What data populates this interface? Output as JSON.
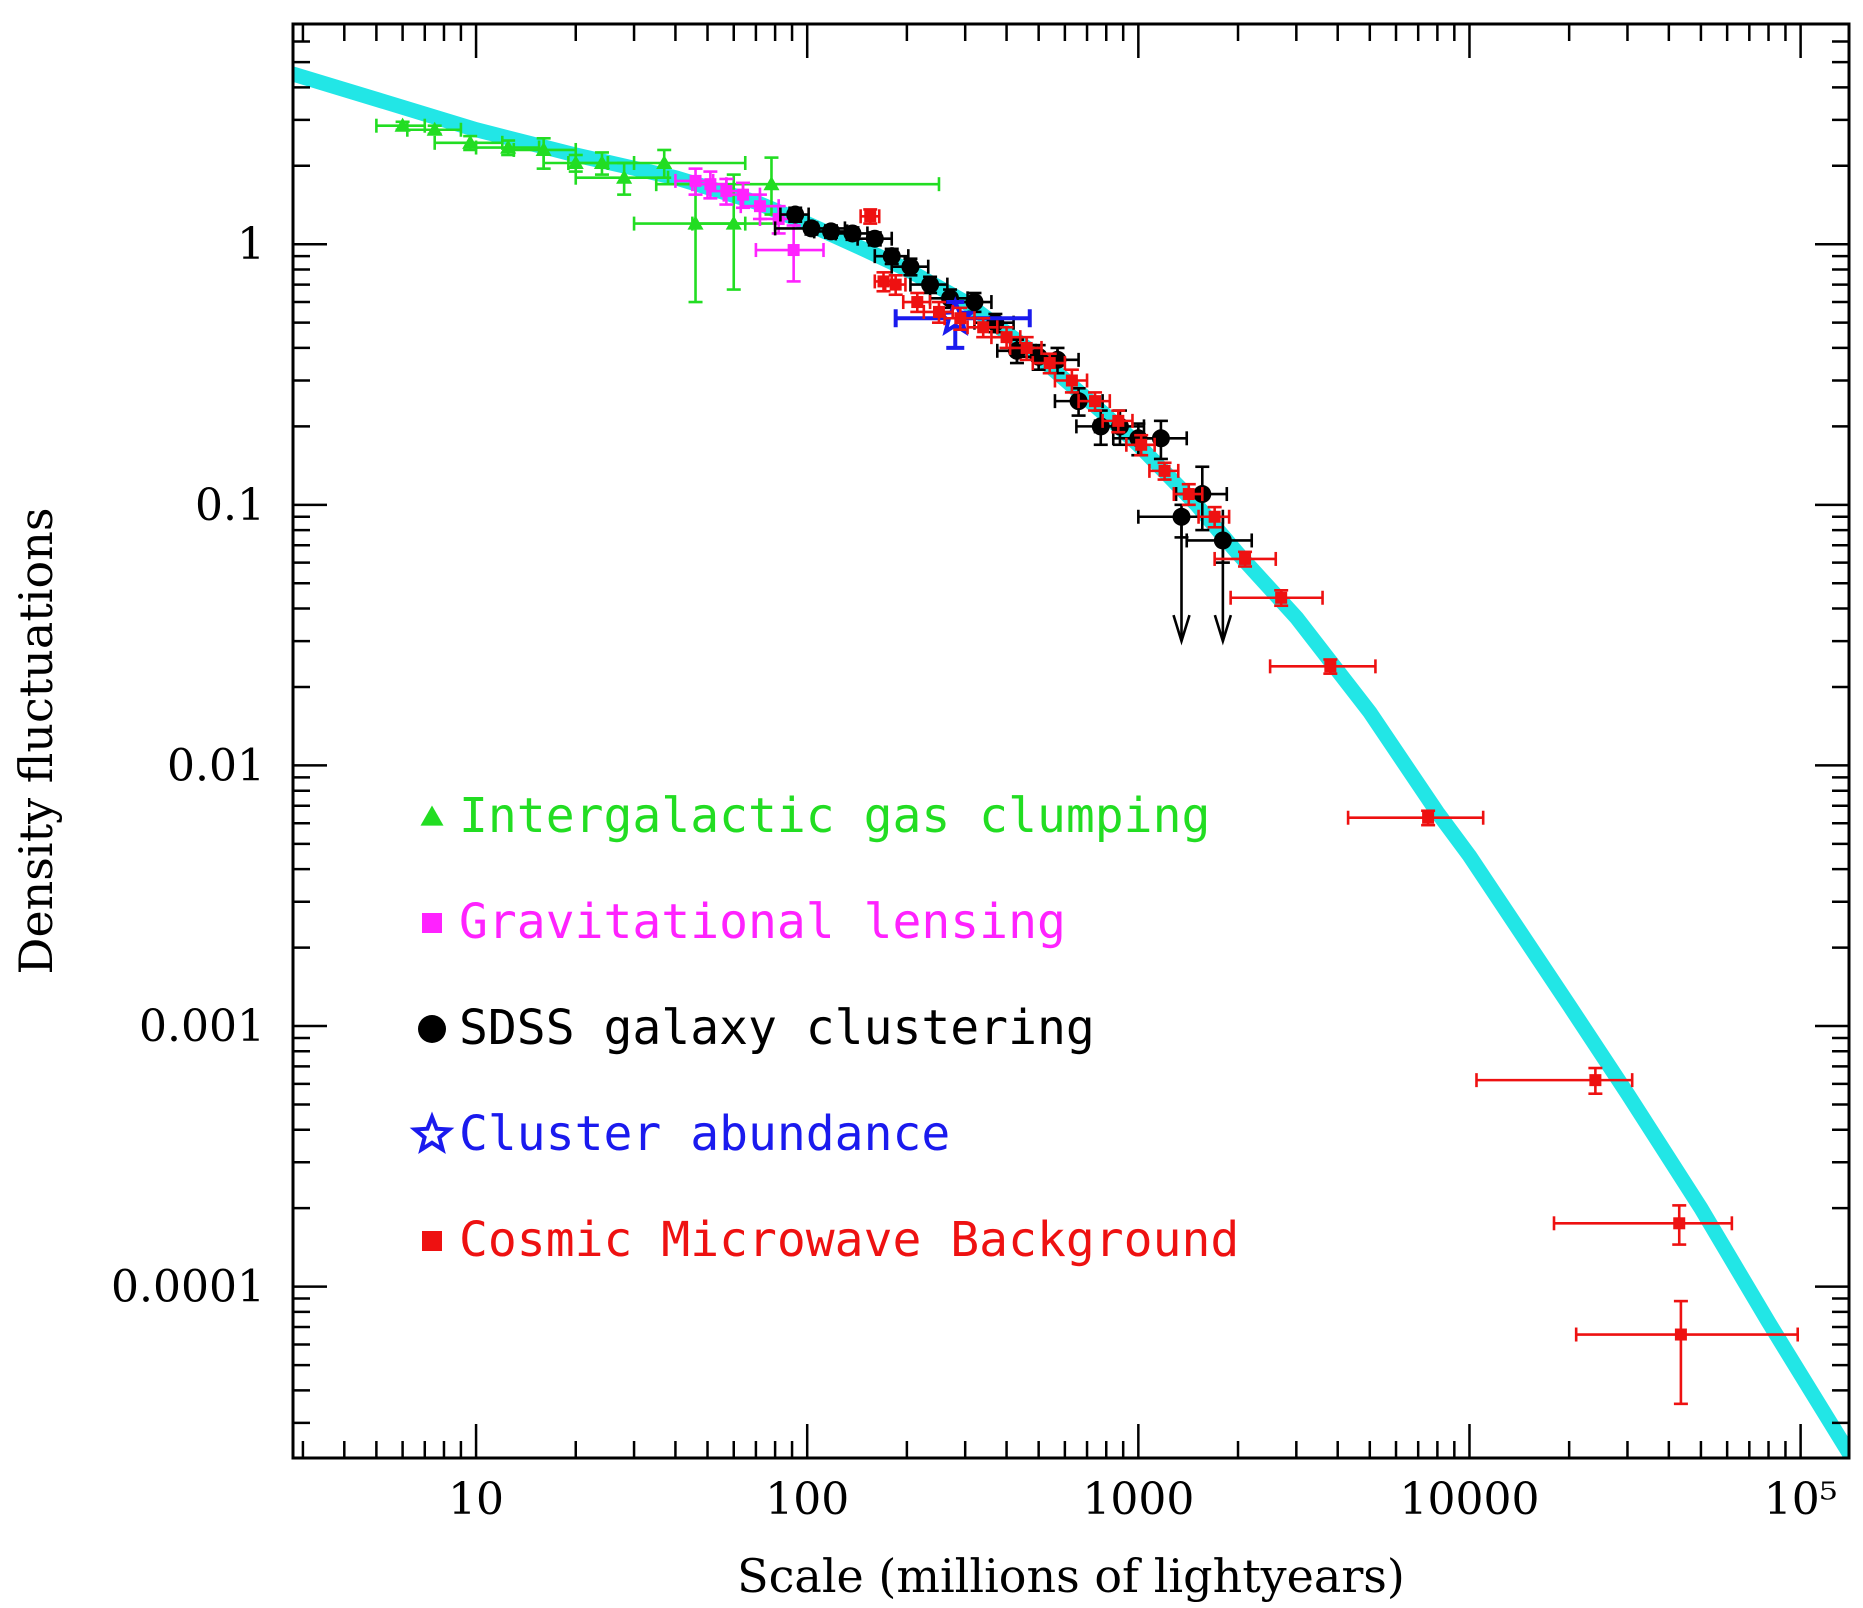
{
  "chart_data": {
    "type": "scatter",
    "title": "",
    "xlabel": "Scale (millions of lightyears)",
    "ylabel": "Density fluctuations",
    "x_scale": "log",
    "y_scale": "log",
    "xlim": [
      2.8,
      140000
    ],
    "ylim": [
      2.2e-05,
      7
    ],
    "x_ticks": [
      {
        "value": 10,
        "label": "10"
      },
      {
        "value": 100,
        "label": "100"
      },
      {
        "value": 1000,
        "label": "1000"
      },
      {
        "value": 10000,
        "label": "10000"
      },
      {
        "value": 100000,
        "label": "10⁵"
      }
    ],
    "y_ticks": [
      {
        "value": 1,
        "label": "1"
      },
      {
        "value": 0.1,
        "label": "0.1"
      },
      {
        "value": 0.01,
        "label": "0.01"
      },
      {
        "value": 0.001,
        "label": "0.001"
      },
      {
        "value": 0.0001,
        "label": "0.0001"
      }
    ],
    "grid": false,
    "legend_position": "bottom-left",
    "model_curve": {
      "color": "#22e6e6",
      "points": [
        [
          2.8,
          4.5
        ],
        [
          5,
          3.6
        ],
        [
          10,
          2.75
        ],
        [
          20,
          2.2
        ],
        [
          40,
          1.8
        ],
        [
          70,
          1.45
        ],
        [
          100,
          1.2
        ],
        [
          150,
          0.95
        ],
        [
          200,
          0.8
        ],
        [
          300,
          0.6
        ],
        [
          500,
          0.37
        ],
        [
          800,
          0.22
        ],
        [
          1000,
          0.17
        ],
        [
          1500,
          0.1
        ],
        [
          2000,
          0.065
        ],
        [
          3000,
          0.037
        ],
        [
          5000,
          0.016
        ],
        [
          8000,
          0.0066
        ],
        [
          10000,
          0.0045
        ],
        [
          20000,
          0.0012
        ],
        [
          30000,
          0.00055
        ],
        [
          50000,
          0.0002
        ],
        [
          80000,
          7.31e-05
        ],
        [
          140000,
          2.3e-05
        ]
      ]
    },
    "series": [
      {
        "name": "Intergalactic gas clumping",
        "marker": "triangle",
        "color": "#22dd22",
        "points": [
          {
            "x": 6,
            "y": 2.85,
            "xerr": [
              5,
              7
            ],
            "yerr": [
              2.75,
              2.95
            ]
          },
          {
            "x": 7.5,
            "y": 2.75,
            "xerr": [
              6.2,
              9
            ],
            "yerr": [
              2.65,
              2.85
            ]
          },
          {
            "x": 9.6,
            "y": 2.45,
            "xerr": [
              7.5,
              12
            ],
            "yerr": [
              2.3,
              2.6
            ]
          },
          {
            "x": 12.5,
            "y": 2.35,
            "xerr": [
              10,
              15.5
            ],
            "yerr": [
              2.2,
              2.5
            ]
          },
          {
            "x": 16,
            "y": 2.3,
            "xerr": [
              13,
              20
            ],
            "yerr": [
              1.95,
              2.55
            ]
          },
          {
            "x": 20,
            "y": 2.05,
            "xerr": [
              16,
              25
            ],
            "yerr": [
              1.9,
              2.2
            ]
          },
          {
            "x": 24,
            "y": 2.05,
            "xerr": [
              19,
              30
            ],
            "yerr": [
              1.85,
              2.25
            ]
          },
          {
            "x": 28,
            "y": 1.8,
            "xerr": [
              20,
              38
            ],
            "yerr": [
              1.55,
              2.05
            ]
          },
          {
            "x": 37,
            "y": 2.05,
            "xerr": [
              25,
              65
            ],
            "yerr": [
              1.8,
              2.3
            ]
          },
          {
            "x": 46,
            "y": 1.2,
            "xerr": [
              30,
              65
            ],
            "yerr": [
              0.6,
              1.7
            ]
          },
          {
            "x": 60,
            "y": 1.2,
            "xerr": [
              45,
              80
            ],
            "yerr": [
              0.67,
              1.85
            ]
          },
          {
            "x": 78,
            "y": 1.7,
            "xerr": [
              35,
              250
            ],
            "yerr": [
              1.3,
              2.15
            ]
          }
        ]
      },
      {
        "name": "Gravitational lensing",
        "marker": "square",
        "color": "#ff22ff",
        "points": [
          {
            "x": 46,
            "y": 1.75,
            "xerr": [
              40,
              52
            ],
            "yerr": [
              1.55,
              1.95
            ]
          },
          {
            "x": 51,
            "y": 1.7,
            "xerr": [
              45,
              57
            ],
            "yerr": [
              1.5,
              1.9
            ]
          },
          {
            "x": 57,
            "y": 1.6,
            "xerr": [
              50,
              64
            ],
            "yerr": [
              1.42,
              1.78
            ]
          },
          {
            "x": 64,
            "y": 1.55,
            "xerr": [
              56,
              72
            ],
            "yerr": [
              1.38,
              1.72
            ]
          },
          {
            "x": 72,
            "y": 1.4,
            "xerr": [
              63,
              82
            ],
            "yerr": [
              1.25,
              1.55
            ]
          },
          {
            "x": 82,
            "y": 1.25,
            "xerr": [
              72,
              92
            ],
            "yerr": [
              1.1,
              1.4
            ]
          },
          {
            "x": 91,
            "y": 0.95,
            "xerr": [
              70,
              112
            ],
            "yerr": [
              0.72,
              1.18
            ]
          }
        ]
      },
      {
        "name": "SDSS galaxy clustering",
        "marker": "circle",
        "color": "#000000",
        "points": [
          {
            "x": 92,
            "y": 1.3,
            "xerr": [
              83,
              101
            ],
            "yerr": [
              1.22,
              1.38
            ]
          },
          {
            "x": 103,
            "y": 1.15,
            "xerr": [
              80,
              130
            ],
            "yerr": [
              1.09,
              1.21
            ]
          },
          {
            "x": 118,
            "y": 1.12,
            "xerr": [
              105,
              132
            ],
            "yerr": [
              1.06,
              1.18
            ]
          },
          {
            "x": 137,
            "y": 1.1,
            "xerr": [
              122,
              152
            ],
            "yerr": [
              1.04,
              1.16
            ]
          },
          {
            "x": 160,
            "y": 1.05,
            "xerr": [
              142,
              180
            ],
            "yerr": [
              0.99,
              1.11
            ]
          },
          {
            "x": 180,
            "y": 0.9,
            "xerr": [
              160,
              202
            ],
            "yerr": [
              0.84,
              0.96
            ]
          },
          {
            "x": 205,
            "y": 0.82,
            "xerr": [
              180,
              232
            ],
            "yerr": [
              0.76,
              0.88
            ]
          },
          {
            "x": 235,
            "y": 0.7,
            "xerr": [
              205,
              265
            ],
            "yerr": [
              0.65,
              0.75
            ]
          },
          {
            "x": 270,
            "y": 0.62,
            "xerr": [
              235,
              305
            ],
            "yerr": [
              0.57,
              0.67
            ]
          },
          {
            "x": 320,
            "y": 0.6,
            "xerr": [
              280,
              360
            ],
            "yerr": [
              0.55,
              0.65
            ]
          },
          {
            "x": 370,
            "y": 0.5,
            "xerr": [
              320,
              420
            ],
            "yerr": [
              0.46,
              0.54
            ]
          },
          {
            "x": 430,
            "y": 0.39,
            "xerr": [
              375,
              490
            ],
            "yerr": [
              0.35,
              0.43
            ]
          },
          {
            "x": 500,
            "y": 0.37,
            "xerr": [
              430,
              570
            ],
            "yerr": [
              0.33,
              0.41
            ]
          },
          {
            "x": 570,
            "y": 0.36,
            "xerr": [
              500,
              660
            ],
            "yerr": [
              0.32,
              0.4
            ]
          },
          {
            "x": 660,
            "y": 0.25,
            "xerr": [
              560,
              780
            ],
            "yerr": [
              0.22,
              0.28
            ]
          },
          {
            "x": 770,
            "y": 0.2,
            "xerr": [
              650,
              900
            ],
            "yerr": [
              0.17,
              0.23
            ]
          },
          {
            "x": 880,
            "y": 0.2,
            "xerr": [
              740,
              1040
            ],
            "yerr": [
              0.17,
              0.23
            ]
          },
          {
            "x": 1000,
            "y": 0.18,
            "xerr": [
              840,
              1180
            ],
            "yerr": [
              0.155,
              0.205
            ]
          },
          {
            "x": 1170,
            "y": 0.18,
            "xerr": [
              980,
              1400
            ],
            "yerr": [
              0.15,
              0.21
            ]
          },
          {
            "x": 1350,
            "y": 0.09,
            "xerr": [
              1000,
              1800
            ],
            "yerr": [
              0.075,
              0.1
            ]
          },
          {
            "x": 1560,
            "y": 0.11,
            "xerr": [
              1300,
              1850
            ],
            "yerr": [
              0.08,
              0.14
            ]
          },
          {
            "x": 1800,
            "y": 0.073,
            "xerr": [
              1400,
              2200
            ],
            "yerr": [
              0.06,
              0.09
            ]
          }
        ],
        "upper_limits": [
          {
            "x": 1350,
            "y_from": 0.09,
            "y_to": 0.03
          },
          {
            "x": 1800,
            "y_from": 0.073,
            "y_to": 0.03
          }
        ]
      },
      {
        "name": "Cluster abundance",
        "marker": "star",
        "color": "#1a1aee",
        "points": [
          {
            "x": 280,
            "y": 0.52,
            "xerr": [
              185,
              470
            ],
            "yerr": [
              0.4,
              0.6
            ]
          }
        ]
      },
      {
        "name": "Cosmic Microwave Background",
        "marker": "square",
        "color": "#ee1111",
        "points": [
          {
            "x": 155,
            "y": 1.28,
            "xerr": [
              145,
              165
            ],
            "yerr": [
              1.2,
              1.36
            ]
          },
          {
            "x": 170,
            "y": 0.72,
            "xerr": [
              160,
              180
            ],
            "yerr": [
              0.66,
              0.78
            ]
          },
          {
            "x": 185,
            "y": 0.7,
            "xerr": [
              172,
              198
            ],
            "yerr": [
              0.64,
              0.76
            ]
          },
          {
            "x": 215,
            "y": 0.6,
            "xerr": [
              195,
              235
            ],
            "yerr": [
              0.55,
              0.65
            ]
          },
          {
            "x": 250,
            "y": 0.55,
            "xerr": [
              225,
              275
            ],
            "yerr": [
              0.5,
              0.6
            ]
          },
          {
            "x": 290,
            "y": 0.52,
            "xerr": [
              260,
              320
            ],
            "yerr": [
              0.47,
              0.57
            ]
          },
          {
            "x": 340,
            "y": 0.48,
            "xerr": [
              305,
              375
            ],
            "yerr": [
              0.44,
              0.52
            ]
          },
          {
            "x": 400,
            "y": 0.44,
            "xerr": [
              360,
              440
            ],
            "yerr": [
              0.4,
              0.48
            ]
          },
          {
            "x": 460,
            "y": 0.4,
            "xerr": [
              410,
              510
            ],
            "yerr": [
              0.36,
              0.44
            ]
          },
          {
            "x": 540,
            "y": 0.35,
            "xerr": [
              480,
              600
            ],
            "yerr": [
              0.32,
              0.38
            ]
          },
          {
            "x": 630,
            "y": 0.3,
            "xerr": [
              560,
              700
            ],
            "yerr": [
              0.27,
              0.33
            ]
          },
          {
            "x": 740,
            "y": 0.25,
            "xerr": [
              660,
              820
            ],
            "yerr": [
              0.23,
              0.27
            ]
          },
          {
            "x": 870,
            "y": 0.21,
            "xerr": [
              780,
              960
            ],
            "yerr": [
              0.19,
              0.23
            ]
          },
          {
            "x": 1020,
            "y": 0.17,
            "xerr": [
              920,
              1120
            ],
            "yerr": [
              0.155,
              0.185
            ]
          },
          {
            "x": 1200,
            "y": 0.135,
            "xerr": [
              1080,
              1320
            ],
            "yerr": [
              0.125,
              0.145
            ]
          },
          {
            "x": 1420,
            "y": 0.11,
            "xerr": [
              1280,
              1560
            ],
            "yerr": [
              0.1,
              0.12
            ]
          },
          {
            "x": 1700,
            "y": 0.09,
            "xerr": [
              1520,
              1880
            ],
            "yerr": [
              0.082,
              0.098
            ]
          },
          {
            "x": 2100,
            "y": 0.062,
            "xerr": [
              1700,
              2600
            ],
            "yerr": [
              0.058,
              0.066
            ]
          },
          {
            "x": 2700,
            "y": 0.044,
            "xerr": [
              1900,
              3600
            ],
            "yerr": [
              0.041,
              0.047
            ]
          },
          {
            "x": 3800,
            "y": 0.024,
            "xerr": [
              2500,
              5200
            ],
            "yerr": [
              0.0225,
              0.0255
            ]
          },
          {
            "x": 7500,
            "y": 0.0063,
            "xerr": [
              4300,
              11000
            ],
            "yerr": [
              0.0059,
              0.0067
            ]
          },
          {
            "x": 24000,
            "y": 0.00062,
            "xerr": [
              10500,
              31000
            ],
            "yerr": [
              0.00055,
              0.00069
            ]
          },
          {
            "x": 43000,
            "y": 0.000175,
            "xerr": [
              18000,
              62000
            ],
            "yerr": [
              0.000145,
              0.000205
            ]
          },
          {
            "x": 43500,
            "y": 6.55e-05,
            "xerr": [
              21000,
              98000
            ],
            "yerr": [
              3.55e-05,
              8.8e-05
            ]
          }
        ]
      }
    ]
  }
}
